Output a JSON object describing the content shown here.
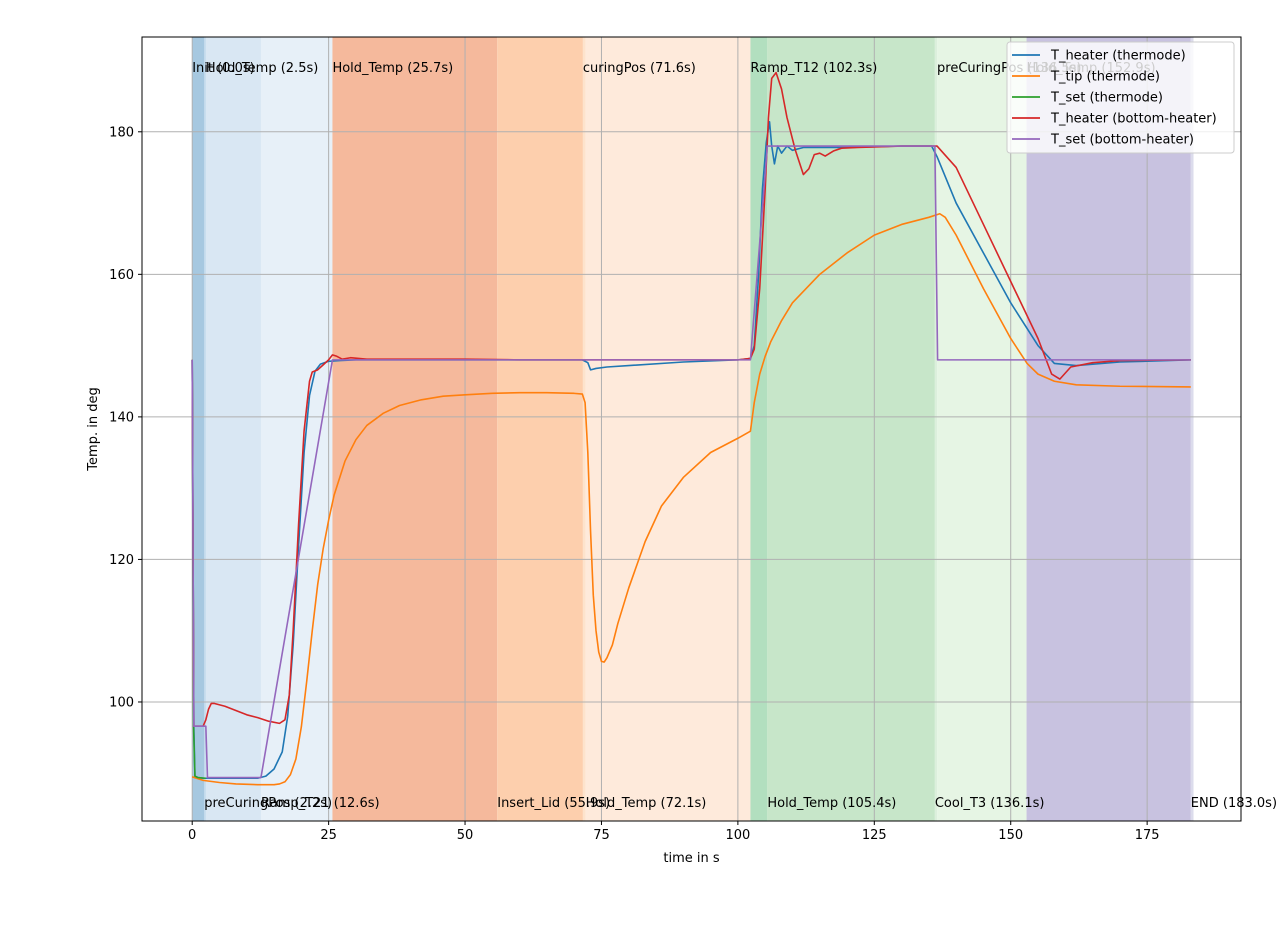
{
  "chart_data": {
    "type": "line",
    "title": "",
    "xlabel": "time in s",
    "ylabel": "Temp. in deg",
    "xlim": [
      -9.2,
      192.2
    ],
    "ylim": [
      83.3,
      193.3
    ],
    "xticks": [
      0,
      25,
      50,
      75,
      100,
      125,
      150,
      175
    ],
    "yticks": [
      100,
      120,
      140,
      160,
      180
    ],
    "grid": true,
    "legend_position": "top-right",
    "phases": [
      {
        "label": "Init (0.0s)",
        "start": 0.0,
        "end": 2.2,
        "color": "#a6c8e0",
        "label_pos": "top"
      },
      {
        "label": "preCuringPos (2.2s)",
        "start": 2.2,
        "end": 2.5,
        "color": "#bdd7ea",
        "label_pos": "bottom"
      },
      {
        "label": "Hold_Temp (2.5s)",
        "start": 2.5,
        "end": 12.6,
        "color": "#d9e7f3",
        "label_pos": "top"
      },
      {
        "label": "Ramp_T21 (12.6s)",
        "start": 12.6,
        "end": 25.7,
        "color": "#e7f0f8",
        "label_pos": "bottom"
      },
      {
        "label": "Hold_Temp (25.7s)",
        "start": 25.7,
        "end": 55.9,
        "color": "#f5b99c",
        "label_pos": "top"
      },
      {
        "label": "Insert_Lid (55.9s)",
        "start": 55.9,
        "end": 71.6,
        "color": "#fdcfad",
        "label_pos": "bottom"
      },
      {
        "label": "curingPos (71.6s)",
        "start": 71.6,
        "end": 72.1,
        "color": "#fde3cc",
        "label_pos": "top"
      },
      {
        "label": "Hold_Temp (72.1s)",
        "start": 72.1,
        "end": 102.3,
        "color": "#feeadb",
        "label_pos": "bottom"
      },
      {
        "label": "Ramp_T12 (102.3s)",
        "start": 102.3,
        "end": 105.4,
        "color": "#b2dfbf",
        "label_pos": "top"
      },
      {
        "label": "Hold_Temp (105.4s)",
        "start": 105.4,
        "end": 136.1,
        "color": "#c7e6c9",
        "label_pos": "bottom"
      },
      {
        "label": "Cool_T3 (136.1s)",
        "start": 136.1,
        "end": 136.5,
        "color": "#dcefdc",
        "label_pos": "bottom"
      },
      {
        "label": "preCuringPos (136.5s)",
        "start": 136.5,
        "end": 152.9,
        "color": "#e6f5e4",
        "label_pos": "top"
      },
      {
        "label": "Hold_Temp (152.9s)",
        "start": 152.9,
        "end": 183.0,
        "color": "#c8c2e0",
        "label_pos": "top"
      },
      {
        "label": "END (183.0s)",
        "start": 183.0,
        "end": 183.5,
        "color": "#dcdcec",
        "label_pos": "bottom"
      }
    ],
    "series": [
      {
        "name": "T_heater (thermode)",
        "color": "#1f77b4",
        "x": [
          0.0,
          0.3,
          0.5,
          1.0,
          2.0,
          3.0,
          5.0,
          8.0,
          12.0,
          13.5,
          15.0,
          16.5,
          17.5,
          18.5,
          19.5,
          20.5,
          21.5,
          22.5,
          23.5,
          25.0,
          27.0,
          30.0,
          40.0,
          50.0,
          60.0,
          71.5,
          72.5,
          73.0,
          74.0,
          76.0,
          80.0,
          90.0,
          100.0,
          102.3,
          103.0,
          103.8,
          104.5,
          105.2,
          105.8,
          106.2,
          106.7,
          107.3,
          108.0,
          109.0,
          110.0,
          112.0,
          115.0,
          120.0,
          130.0,
          135.5,
          136.5,
          140.0,
          145.0,
          150.0,
          155.0,
          158.0,
          162.0,
          170.0,
          183.0
        ],
        "y": [
          148.0,
          96.5,
          89.6,
          89.4,
          89.3,
          89.3,
          89.3,
          89.3,
          89.3,
          89.6,
          90.6,
          93.0,
          98.0,
          108.0,
          122.0,
          135.0,
          143.0,
          146.4,
          147.4,
          147.8,
          147.9,
          148.0,
          148.0,
          148.0,
          148.0,
          148.0,
          147.6,
          146.6,
          146.8,
          147.0,
          147.2,
          147.7,
          148.0,
          148.2,
          150.0,
          160.0,
          172.0,
          178.5,
          181.4,
          178.0,
          175.5,
          178.0,
          177.0,
          178.0,
          177.4,
          177.8,
          177.8,
          177.8,
          178.0,
          178.0,
          176.5,
          170.0,
          163.0,
          156.0,
          150.0,
          147.5,
          147.2,
          147.7,
          148.0
        ]
      },
      {
        "name": "T_tip (thermode)",
        "color": "#ff7f0e",
        "x": [
          0.0,
          2.0,
          5.0,
          8.0,
          12.0,
          15.0,
          16.0,
          17.0,
          18.0,
          19.0,
          20.0,
          21.0,
          22.0,
          23.0,
          24.0,
          25.0,
          26.0,
          28.0,
          30.0,
          32.0,
          35.0,
          38.0,
          42.0,
          46.0,
          50.0,
          55.0,
          60.0,
          65.0,
          70.0,
          71.5,
          72.0,
          72.5,
          73.0,
          73.5,
          74.0,
          74.5,
          75.0,
          75.5,
          76.0,
          77.0,
          78.0,
          80.0,
          83.0,
          86.0,
          90.0,
          95.0,
          100.0,
          102.3,
          103.0,
          104.0,
          105.0,
          106.0,
          108.0,
          110.0,
          115.0,
          120.0,
          125.0,
          130.0,
          135.0,
          137.0,
          138.0,
          140.0,
          145.0,
          150.0,
          153.0,
          155.0,
          158.0,
          162.0,
          170.0,
          183.0
        ],
        "y": [
          89.5,
          89.0,
          88.7,
          88.5,
          88.4,
          88.4,
          88.5,
          88.8,
          89.8,
          92.0,
          96.5,
          103.0,
          110.0,
          116.5,
          121.5,
          125.5,
          129.0,
          133.8,
          136.8,
          138.8,
          140.5,
          141.6,
          142.4,
          142.9,
          143.1,
          143.3,
          143.4,
          143.4,
          143.3,
          143.2,
          142.0,
          135.0,
          124.0,
          115.0,
          110.0,
          107.0,
          105.7,
          105.6,
          106.2,
          108.0,
          111.0,
          116.0,
          122.5,
          127.5,
          131.5,
          135.0,
          137.0,
          138.0,
          142.0,
          146.0,
          148.5,
          150.5,
          153.5,
          156.0,
          160.0,
          163.0,
          165.5,
          167.0,
          168.0,
          168.5,
          168.0,
          165.5,
          158.0,
          151.0,
          147.5,
          146.0,
          145.0,
          144.5,
          144.3,
          144.2
        ]
      },
      {
        "name": "T_set (thermode)",
        "color": "#2ca02c",
        "x": [
          0.0,
          0.25,
          0.5,
          1.0,
          2.5
        ],
        "y": [
          148.0,
          96.5,
          89.6,
          89.4,
          89.3
        ]
      },
      {
        "name": "T_heater (bottom-heater)",
        "color": "#d62728",
        "x": [
          0.0,
          0.3,
          1.0,
          2.0,
          2.5,
          3.0,
          3.5,
          4.0,
          6.0,
          8.0,
          10.0,
          12.0,
          14.0,
          16.0,
          17.0,
          17.8,
          18.5,
          19.5,
          20.5,
          21.5,
          22.0,
          23.0,
          24.0,
          25.0,
          25.7,
          26.5,
          27.5,
          29.0,
          32.0,
          40.0,
          50.0,
          60.0,
          70.0,
          80.0,
          90.0,
          100.0,
          102.3,
          103.0,
          104.0,
          105.0,
          105.6,
          106.2,
          107.0,
          108.0,
          109.0,
          110.5,
          112.0,
          113.0,
          114.0,
          115.0,
          116.0,
          117.5,
          119.0,
          122.0,
          130.0,
          136.5,
          140.0,
          145.0,
          150.0,
          155.0,
          156.5,
          157.5,
          159.0,
          161.0,
          165.0,
          170.0,
          183.0
        ],
        "y": [
          148.0,
          96.6,
          96.6,
          96.6,
          97.5,
          99.0,
          99.8,
          99.8,
          99.4,
          98.8,
          98.2,
          97.8,
          97.3,
          97.0,
          97.5,
          101.0,
          110.0,
          125.0,
          138.0,
          145.0,
          146.3,
          146.6,
          147.3,
          148.0,
          148.7,
          148.5,
          148.1,
          148.3,
          148.1,
          148.1,
          148.1,
          148.0,
          148.0,
          148.0,
          148.0,
          148.0,
          148.2,
          149.5,
          158.0,
          172.0,
          182.0,
          187.5,
          188.3,
          186.0,
          182.0,
          177.5,
          174.0,
          174.8,
          176.8,
          177.0,
          176.6,
          177.3,
          177.7,
          177.8,
          178.0,
          178.0,
          175.0,
          167.0,
          159.0,
          151.0,
          148.0,
          146.0,
          145.3,
          147.0,
          147.6,
          147.9,
          148.0
        ]
      },
      {
        "name": "T_set (bottom-heater)",
        "color": "#9467bd",
        "x": [
          0.0,
          0.3,
          2.2,
          2.5,
          2.8,
          12.6,
          25.7,
          102.3,
          105.4,
          136.1,
          136.6,
          183.0
        ],
        "y": [
          148.0,
          96.6,
          96.6,
          96.6,
          89.4,
          89.4,
          148.0,
          148.0,
          178.0,
          178.0,
          148.0,
          148.0
        ]
      }
    ]
  }
}
